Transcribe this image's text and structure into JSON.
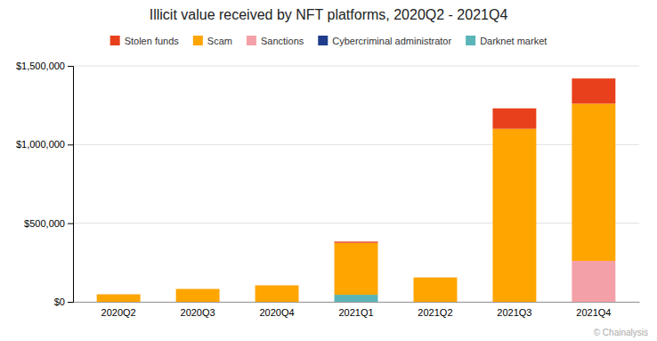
{
  "chart_data": {
    "type": "bar",
    "title": "Illicit value received by NFT platforms, 2020Q2 - 2021Q4",
    "stacked": true,
    "categories": [
      "2020Q2",
      "2020Q3",
      "2020Q4",
      "2021Q1",
      "2021Q2",
      "2021Q3",
      "2021Q4"
    ],
    "series": [
      {
        "name": "Darknet market",
        "color": "#5ab4b8",
        "values": [
          0,
          0,
          0,
          45000,
          0,
          0,
          0
        ]
      },
      {
        "name": "Cybercriminal administrator",
        "color": "#1f3d8c",
        "values": [
          0,
          0,
          0,
          0,
          0,
          0,
          0
        ]
      },
      {
        "name": "Sanctions",
        "color": "#f4a0a8",
        "values": [
          0,
          0,
          0,
          0,
          0,
          0,
          260000
        ]
      },
      {
        "name": "Scam",
        "color": "#ffa500",
        "values": [
          48000,
          82000,
          105000,
          330000,
          155000,
          1100000,
          1000000
        ]
      },
      {
        "name": "Stolen funds",
        "color": "#e8401c",
        "values": [
          0,
          0,
          0,
          8000,
          0,
          130000,
          160000
        ]
      }
    ],
    "ylim": [
      0,
      1500000
    ],
    "yticks": [
      {
        "value": 0,
        "label": "$0"
      },
      {
        "value": 500000,
        "label": "$500,000"
      },
      {
        "value": 1000000,
        "label": "$1,000,000"
      },
      {
        "value": 1500000,
        "label": "$1,500,000"
      }
    ],
    "grid": true,
    "legend": "top",
    "annotations": [
      {
        "text": "© Chainalysis"
      }
    ]
  }
}
